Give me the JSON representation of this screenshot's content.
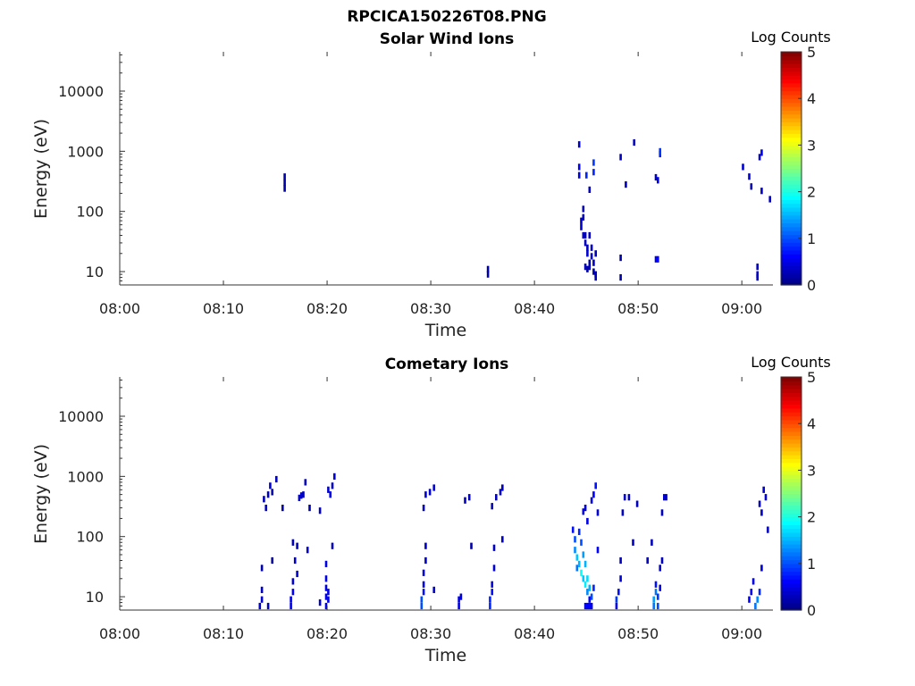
{
  "figure": {
    "filename_title": "RPCICA150226T08.PNG"
  },
  "colorbar": {
    "label": "Log Counts",
    "ticks": [
      "0",
      "1",
      "2",
      "3",
      "4",
      "5"
    ],
    "range": [
      0,
      5
    ],
    "colormap": "jet"
  },
  "chart_data": [
    {
      "type": "heatmap",
      "title": "Solar Wind Ions",
      "xlabel": "Time",
      "ylabel": "Energy (eV)",
      "x_ticks": [
        "08:00",
        "08:10",
        "08:20",
        "08:30",
        "08:40",
        "08:50",
        "09:00"
      ],
      "y_ticks": [
        "10",
        "100",
        "1000",
        "10000"
      ],
      "x_range_minutes": [
        0,
        63
      ],
      "y_range_ev": [
        6,
        45000
      ],
      "y_scale": "log",
      "x_unit": "minutes after 08:00",
      "cells": [
        [
          15.8,
          300,
          0.2
        ],
        [
          15.8,
          380,
          0.2
        ],
        [
          15.8,
          240,
          0.2
        ],
        [
          35.4,
          9,
          0.2
        ],
        [
          35.4,
          11,
          0.2
        ],
        [
          44.2,
          1300,
          0.3
        ],
        [
          44.2,
          550,
          0.6
        ],
        [
          44.2,
          400,
          0.5
        ],
        [
          44.4,
          55,
          0.4
        ],
        [
          44.4,
          70,
          0.3
        ],
        [
          44.6,
          110,
          0.3
        ],
        [
          44.6,
          80,
          0.3
        ],
        [
          44.6,
          40,
          0.3
        ],
        [
          44.8,
          30,
          0.3
        ],
        [
          44.8,
          40,
          0.3
        ],
        [
          45.0,
          25,
          0.3
        ],
        [
          45.0,
          20,
          0.4
        ],
        [
          45.2,
          40,
          0.3
        ],
        [
          45.2,
          14,
          0.2
        ],
        [
          45.2,
          12,
          0.3
        ],
        [
          45.4,
          18,
          0.4
        ],
        [
          45.4,
          25,
          0.3
        ],
        [
          45.6,
          14,
          0.3
        ],
        [
          45.6,
          10,
          0.2
        ],
        [
          45.8,
          20,
          0.3
        ],
        [
          45.8,
          9,
          0.3
        ],
        [
          45.8,
          8,
          0.3
        ],
        [
          44.8,
          12,
          0.3
        ],
        [
          45.0,
          11,
          0.2
        ],
        [
          44.9,
          400,
          0.8
        ],
        [
          45.6,
          650,
          0.9
        ],
        [
          45.6,
          450,
          0.8
        ],
        [
          45.2,
          230,
          0.3
        ],
        [
          48.2,
          17,
          0.2
        ],
        [
          48.2,
          8,
          0.2
        ],
        [
          48.2,
          800,
          0.3
        ],
        [
          49.5,
          1400,
          0.3
        ],
        [
          48.7,
          280,
          0.3
        ],
        [
          51.6,
          16,
          0.6
        ],
        [
          51.8,
          16,
          0.6
        ],
        [
          51.6,
          370,
          0.4
        ],
        [
          51.8,
          330,
          0.4
        ],
        [
          52.0,
          900,
          0.8
        ],
        [
          52.0,
          1000,
          0.9
        ],
        [
          60.0,
          550,
          0.4
        ],
        [
          60.6,
          380,
          0.4
        ],
        [
          60.8,
          260,
          0.3
        ],
        [
          61.4,
          12,
          0.3
        ],
        [
          61.4,
          9,
          0.3
        ],
        [
          61.4,
          8,
          0.3
        ],
        [
          61.6,
          800,
          0.4
        ],
        [
          61.8,
          950,
          0.5
        ],
        [
          61.8,
          220,
          0.3
        ],
        [
          62.6,
          160,
          0.3
        ]
      ]
    },
    {
      "type": "heatmap",
      "title": "Cometary Ions",
      "xlabel": "Time",
      "ylabel": "Energy (eV)",
      "x_ticks": [
        "08:00",
        "08:10",
        "08:20",
        "08:30",
        "08:40",
        "08:50",
        "09:00"
      ],
      "y_ticks": [
        "10",
        "100",
        "1000",
        "10000"
      ],
      "x_range_minutes": [
        0,
        63
      ],
      "y_range_ev": [
        6,
        45000
      ],
      "y_scale": "log",
      "x_unit": "minutes after 08:00",
      "cells": [
        [
          13.4,
          7,
          0.4
        ],
        [
          13.6,
          9,
          0.4
        ],
        [
          13.6,
          13,
          0.3
        ],
        [
          13.6,
          30,
          0.2
        ],
        [
          13.8,
          420,
          0.3
        ],
        [
          14.0,
          300,
          0.3
        ],
        [
          14.2,
          500,
          0.3
        ],
        [
          14.4,
          700,
          0.4
        ],
        [
          14.6,
          550,
          0.3
        ],
        [
          15.0,
          900,
          0.3
        ],
        [
          14.2,
          7,
          0.3
        ],
        [
          14.6,
          40,
          0.2
        ],
        [
          15.6,
          300,
          0.2
        ],
        [
          16.4,
          7,
          0.5
        ],
        [
          16.4,
          9,
          0.5
        ],
        [
          16.6,
          12,
          0.6
        ],
        [
          16.6,
          18,
          0.4
        ],
        [
          16.6,
          80,
          0.3
        ],
        [
          16.8,
          40,
          0.3
        ],
        [
          17.0,
          24,
          0.4
        ],
        [
          17.0,
          70,
          0.3
        ],
        [
          17.2,
          440,
          0.3
        ],
        [
          17.4,
          480,
          0.4
        ],
        [
          17.6,
          500,
          0.3
        ],
        [
          17.8,
          800,
          0.3
        ],
        [
          18.0,
          60,
          0.3
        ],
        [
          18.2,
          300,
          0.2
        ],
        [
          19.2,
          8,
          0.4
        ],
        [
          19.2,
          270,
          0.3
        ],
        [
          19.8,
          7,
          0.5
        ],
        [
          19.8,
          10,
          0.5
        ],
        [
          19.8,
          14,
          0.5
        ],
        [
          19.8,
          20,
          0.5
        ],
        [
          19.8,
          35,
          0.5
        ],
        [
          20.0,
          9,
          0.5
        ],
        [
          20.0,
          12,
          0.5
        ],
        [
          20.0,
          600,
          0.4
        ],
        [
          20.2,
          500,
          0.5
        ],
        [
          20.4,
          700,
          0.4
        ],
        [
          20.6,
          1000,
          0.4
        ],
        [
          20.4,
          70,
          0.3
        ],
        [
          29.0,
          7,
          1.0
        ],
        [
          29.0,
          9,
          1.0
        ],
        [
          29.2,
          12,
          0.7
        ],
        [
          29.2,
          16,
          0.5
        ],
        [
          29.2,
          25,
          0.4
        ],
        [
          29.4,
          40,
          0.3
        ],
        [
          29.4,
          70,
          0.3
        ],
        [
          29.2,
          300,
          0.3
        ],
        [
          29.4,
          500,
          0.4
        ],
        [
          29.8,
          550,
          0.4
        ],
        [
          30.2,
          650,
          0.4
        ],
        [
          30.2,
          13,
          0.3
        ],
        [
          32.6,
          7,
          0.5
        ],
        [
          32.6,
          9,
          0.5
        ],
        [
          32.8,
          10,
          0.4
        ],
        [
          33.2,
          400,
          0.3
        ],
        [
          33.6,
          450,
          0.3
        ],
        [
          33.8,
          70,
          0.2
        ],
        [
          35.6,
          7,
          0.8
        ],
        [
          35.6,
          9,
          0.8
        ],
        [
          35.8,
          12,
          0.7
        ],
        [
          35.8,
          16,
          0.5
        ],
        [
          36.0,
          30,
          0.4
        ],
        [
          36.0,
          65,
          0.3
        ],
        [
          35.8,
          320,
          0.3
        ],
        [
          36.2,
          450,
          0.3
        ],
        [
          36.6,
          550,
          0.4
        ],
        [
          36.8,
          650,
          0.3
        ],
        [
          36.8,
          90,
          0.3
        ],
        [
          43.6,
          130,
          0.7
        ],
        [
          43.8,
          90,
          1.0
        ],
        [
          43.8,
          60,
          1.3
        ],
        [
          44.0,
          45,
          1.6
        ],
        [
          44.0,
          30,
          1.2
        ],
        [
          44.2,
          120,
          0.8
        ],
        [
          44.2,
          35,
          1.5
        ],
        [
          44.4,
          25,
          1.9
        ],
        [
          44.4,
          80,
          1.0
        ],
        [
          44.6,
          20,
          1.6
        ],
        [
          44.6,
          50,
          1.4
        ],
        [
          44.8,
          16,
          1.8
        ],
        [
          44.8,
          35,
          1.5
        ],
        [
          45.0,
          12,
          1.3
        ],
        [
          45.0,
          20,
          1.7
        ],
        [
          45.2,
          9,
          0.6
        ],
        [
          45.2,
          14,
          1.5
        ],
        [
          45.4,
          7,
          0.4
        ],
        [
          45.4,
          10,
          1.0
        ],
        [
          45.6,
          14,
          0.8
        ],
        [
          44.6,
          260,
          0.5
        ],
        [
          44.8,
          300,
          0.4
        ],
        [
          45.0,
          180,
          0.5
        ],
        [
          45.4,
          400,
          0.5
        ],
        [
          45.6,
          500,
          0.6
        ],
        [
          45.8,
          700,
          0.7
        ],
        [
          46.0,
          250,
          0.4
        ],
        [
          46.0,
          60,
          0.6
        ],
        [
          45.2,
          7,
          0.6
        ],
        [
          45.0,
          7,
          0.6
        ],
        [
          44.8,
          7,
          0.5
        ],
        [
          47.8,
          7,
          0.6
        ],
        [
          47.8,
          9,
          0.9
        ],
        [
          48.0,
          12,
          0.7
        ],
        [
          48.2,
          20,
          0.4
        ],
        [
          48.2,
          40,
          0.3
        ],
        [
          48.4,
          250,
          0.3
        ],
        [
          48.6,
          450,
          0.3
        ],
        [
          49.0,
          450,
          0.3
        ],
        [
          49.4,
          80,
          0.3
        ],
        [
          49.8,
          350,
          0.3
        ],
        [
          51.4,
          7,
          1.2
        ],
        [
          51.4,
          9,
          1.4
        ],
        [
          51.6,
          12,
          1.2
        ],
        [
          51.6,
          16,
          0.7
        ],
        [
          51.8,
          7,
          1.0
        ],
        [
          51.8,
          10,
          0.9
        ],
        [
          52.0,
          14,
          0.5
        ],
        [
          52.0,
          30,
          0.4
        ],
        [
          52.2,
          40,
          0.3
        ],
        [
          52.2,
          250,
          0.3
        ],
        [
          52.4,
          450,
          0.4
        ],
        [
          52.6,
          450,
          0.3
        ],
        [
          50.8,
          40,
          0.3
        ],
        [
          51.2,
          80,
          0.3
        ],
        [
          60.6,
          9,
          0.6
        ],
        [
          60.8,
          12,
          0.6
        ],
        [
          61.0,
          18,
          0.5
        ],
        [
          61.2,
          7,
          1.2
        ],
        [
          61.4,
          9,
          1.3
        ],
        [
          61.6,
          12,
          0.8
        ],
        [
          61.8,
          30,
          0.4
        ],
        [
          61.6,
          350,
          0.3
        ],
        [
          61.8,
          250,
          0.3
        ],
        [
          62.2,
          450,
          0.4
        ],
        [
          62.0,
          600,
          0.4
        ],
        [
          62.4,
          130,
          0.3
        ]
      ]
    }
  ]
}
